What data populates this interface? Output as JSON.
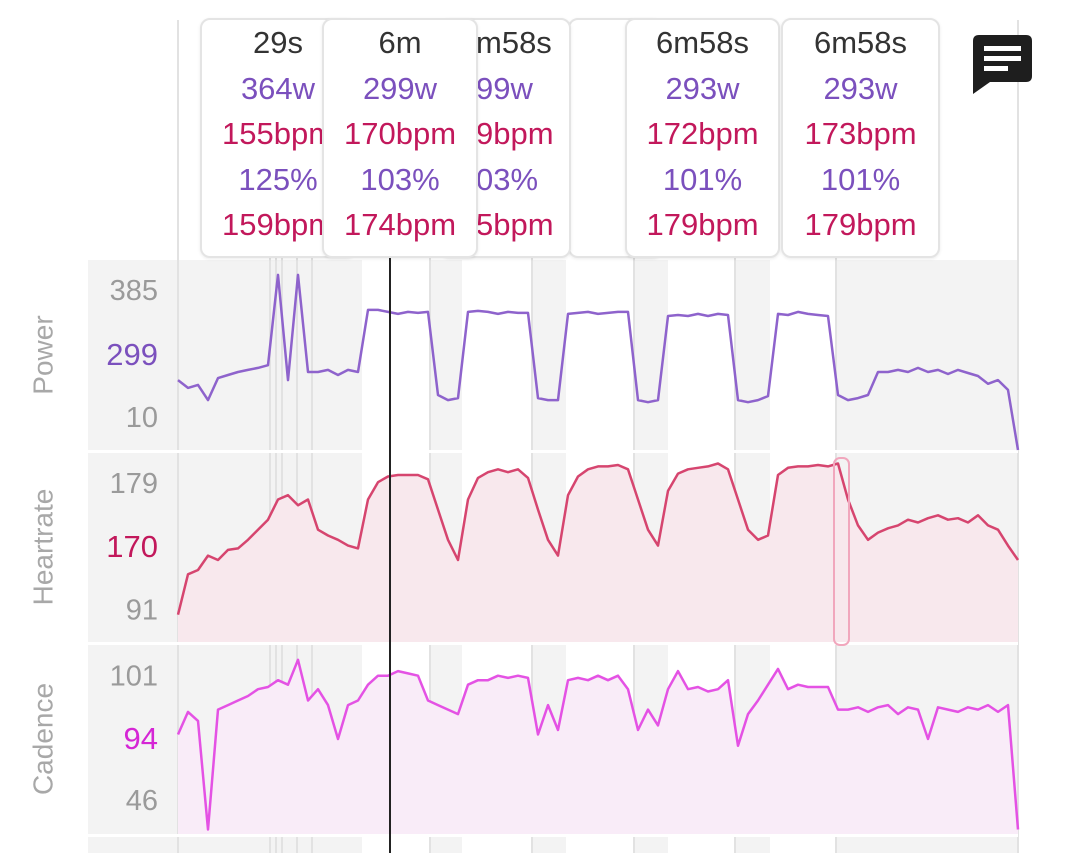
{
  "tooltips": [
    {
      "duration": "29s",
      "power": "364w",
      "heartrate": "155bpm",
      "percent": "125%",
      "heartrate_2": "159bpm"
    },
    {
      "duration": "6m",
      "power": "299w",
      "heartrate": "170bpm",
      "percent": "103%",
      "heartrate_2": "174bpm"
    },
    {
      "duration": "m58s",
      "power": "99w",
      "heartrate": "9bpm",
      "percent": "03%",
      "heartrate_2": "5bpm"
    },
    {
      "duration": "6m58s",
      "power": "293w",
      "heartrate": "172bpm",
      "percent": "101%",
      "heartrate_2": "179bpm"
    },
    {
      "duration": "6m58s",
      "power": "293w",
      "heartrate": "173bpm",
      "percent": "101%",
      "heartrate_2": "179bpm"
    }
  ],
  "chart_data": [
    {
      "type": "line",
      "ylabel": "Power",
      "color": "#8e63cc",
      "fill": null,
      "current": 299,
      "current_color": "#7b50bd",
      "ylim": [
        -80,
        480
      ],
      "yticks": [
        10,
        385
      ],
      "values": [
        126,
        103,
        112,
        67,
        132,
        141,
        150,
        156,
        162,
        170,
        436,
        126,
        436,
        150,
        150,
        156,
        141,
        156,
        150,
        333,
        333,
        327,
        321,
        327,
        324,
        327,
        82,
        67,
        73,
        327,
        330,
        327,
        321,
        327,
        324,
        324,
        73,
        67,
        67,
        321,
        324,
        327,
        321,
        324,
        327,
        327,
        67,
        61,
        67,
        315,
        318,
        315,
        321,
        315,
        321,
        318,
        67,
        61,
        67,
        79,
        321,
        318,
        327,
        321,
        318,
        315,
        82,
        67,
        73,
        82,
        150,
        150,
        156,
        150,
        162,
        150,
        156,
        144,
        156,
        147,
        138,
        115,
        126,
        97,
        -80
      ]
    },
    {
      "type": "line",
      "ylabel": "Heartrate",
      "color": "#d6456f",
      "fill": "#f8e8ed",
      "current": 170,
      "current_color": "#c2185b",
      "ylim": [
        70,
        202
      ],
      "yticks": [
        91,
        179
      ],
      "values": [
        89,
        117,
        120,
        130,
        127,
        134,
        135,
        141,
        148,
        155,
        169,
        172,
        165,
        169,
        148,
        144,
        141,
        137,
        135,
        169,
        181,
        185,
        186,
        186,
        186,
        183,
        162,
        141,
        127,
        169,
        184,
        188,
        190,
        188,
        190,
        184,
        162,
        141,
        130,
        172,
        185,
        190,
        192,
        192,
        193,
        190,
        169,
        148,
        137,
        175,
        187,
        190,
        191,
        192,
        194,
        190,
        169,
        148,
        141,
        144,
        186,
        191,
        192,
        192,
        193,
        192,
        194,
        169,
        151,
        141,
        146,
        149,
        151,
        155,
        153,
        156,
        158,
        155,
        156,
        153,
        158,
        151,
        148,
        137,
        127
      ]
    },
    {
      "type": "line",
      "ylabel": "Cadence",
      "color": "#e452e4",
      "fill": "#f9ecf8",
      "current": 94,
      "current_color": "#d526d5",
      "ylim": [
        32,
        116
      ],
      "yticks": [
        46,
        101
      ],
      "values": [
        76,
        86,
        82,
        34,
        87,
        89,
        91,
        93,
        96,
        97,
        100,
        98,
        109,
        91,
        96,
        89,
        74,
        89,
        91,
        98,
        102,
        102,
        104,
        103,
        102,
        91,
        89,
        87,
        85,
        98,
        100,
        100,
        102,
        101,
        102,
        101,
        76,
        89,
        78,
        100,
        101,
        100,
        102,
        100,
        102,
        96,
        78,
        87,
        80,
        96,
        104,
        96,
        97,
        95,
        96,
        100,
        71,
        85,
        91,
        98,
        105,
        96,
        98,
        97,
        97,
        97,
        87,
        87,
        88,
        86,
        88,
        89,
        85,
        88,
        87,
        74,
        88,
        87,
        86,
        88,
        87,
        89,
        86,
        89,
        34
      ]
    }
  ]
}
